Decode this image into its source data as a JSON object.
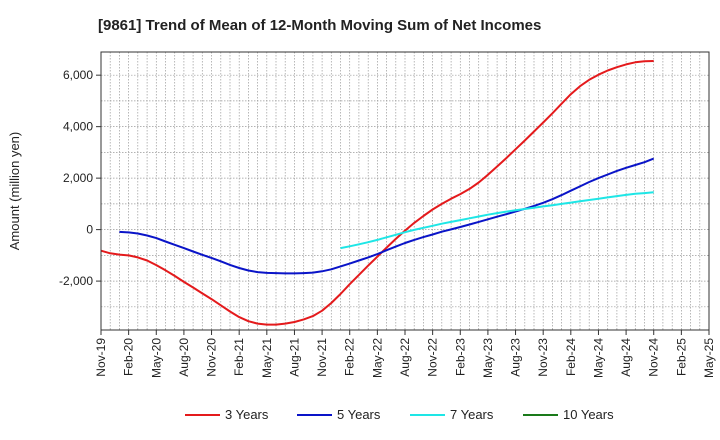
{
  "chart_data": {
    "type": "line",
    "title": "[9861]  Trend of Mean of 12-Month Moving Sum of Net Incomes",
    "xlabel": "",
    "ylabel": "Amount (million yen)",
    "ylim": [
      -3900,
      6900
    ],
    "yticks": [
      -2000,
      0,
      2000,
      4000,
      6000
    ],
    "ytick_labels": [
      "-2,000",
      "0",
      "2,000",
      "4,000",
      "6,000"
    ],
    "x_range": [
      "2019-11",
      "2025-05"
    ],
    "xticks": [
      "Nov-19",
      "Feb-20",
      "May-20",
      "Aug-20",
      "Nov-20",
      "Feb-21",
      "May-21",
      "Aug-21",
      "Nov-21",
      "Feb-22",
      "May-22",
      "Aug-22",
      "Nov-22",
      "Feb-23",
      "May-23",
      "Aug-23",
      "Nov-23",
      "Feb-24",
      "May-24",
      "Aug-24",
      "Nov-24",
      "Feb-25",
      "May-25"
    ],
    "grid": true,
    "legend_position": "bottom",
    "series": [
      {
        "name": "3 Years",
        "color": "#e41a1c",
        "points": [
          [
            "2019-11",
            -820
          ],
          [
            "2019-12",
            -920
          ],
          [
            "2020-01",
            -970
          ],
          [
            "2020-02",
            -1000
          ],
          [
            "2020-03",
            -1080
          ],
          [
            "2020-04",
            -1200
          ],
          [
            "2020-05",
            -1380
          ],
          [
            "2020-06",
            -1580
          ],
          [
            "2020-07",
            -1800
          ],
          [
            "2020-08",
            -2030
          ],
          [
            "2020-09",
            -2250
          ],
          [
            "2020-10",
            -2480
          ],
          [
            "2020-11",
            -2700
          ],
          [
            "2020-12",
            -2940
          ],
          [
            "2021-01",
            -3180
          ],
          [
            "2021-02",
            -3400
          ],
          [
            "2021-03",
            -3560
          ],
          [
            "2021-04",
            -3650
          ],
          [
            "2021-05",
            -3690
          ],
          [
            "2021-06",
            -3690
          ],
          [
            "2021-07",
            -3650
          ],
          [
            "2021-08",
            -3590
          ],
          [
            "2021-09",
            -3490
          ],
          [
            "2021-10",
            -3360
          ],
          [
            "2021-11",
            -3150
          ],
          [
            "2021-12",
            -2850
          ],
          [
            "2022-01",
            -2500
          ],
          [
            "2022-02",
            -2120
          ],
          [
            "2022-03",
            -1760
          ],
          [
            "2022-04",
            -1400
          ],
          [
            "2022-05",
            -1050
          ],
          [
            "2022-06",
            -700
          ],
          [
            "2022-07",
            -360
          ],
          [
            "2022-08",
            -40
          ],
          [
            "2022-09",
            260
          ],
          [
            "2022-10",
            530
          ],
          [
            "2022-11",
            780
          ],
          [
            "2022-12",
            1000
          ],
          [
            "2023-01",
            1200
          ],
          [
            "2023-02",
            1380
          ],
          [
            "2023-03",
            1580
          ],
          [
            "2023-04",
            1830
          ],
          [
            "2023-05",
            2130
          ],
          [
            "2023-06",
            2450
          ],
          [
            "2023-07",
            2780
          ],
          [
            "2023-08",
            3120
          ],
          [
            "2023-09",
            3460
          ],
          [
            "2023-10",
            3810
          ],
          [
            "2023-11",
            4160
          ],
          [
            "2023-12",
            4520
          ],
          [
            "2024-01",
            4890
          ],
          [
            "2024-02",
            5260
          ],
          [
            "2024-03",
            5570
          ],
          [
            "2024-04",
            5820
          ],
          [
            "2024-05",
            6020
          ],
          [
            "2024-06",
            6180
          ],
          [
            "2024-07",
            6310
          ],
          [
            "2024-08",
            6420
          ],
          [
            "2024-09",
            6500
          ],
          [
            "2024-10",
            6540
          ],
          [
            "2024-11",
            6550
          ]
        ]
      },
      {
        "name": "5 Years",
        "color": "#0a14c8",
        "points": [
          [
            "2020-01",
            -90
          ],
          [
            "2020-02",
            -110
          ],
          [
            "2020-03",
            -150
          ],
          [
            "2020-04",
            -230
          ],
          [
            "2020-05",
            -330
          ],
          [
            "2020-06",
            -460
          ],
          [
            "2020-07",
            -590
          ],
          [
            "2020-08",
            -720
          ],
          [
            "2020-09",
            -850
          ],
          [
            "2020-10",
            -980
          ],
          [
            "2020-11",
            -1100
          ],
          [
            "2020-12",
            -1230
          ],
          [
            "2021-01",
            -1370
          ],
          [
            "2021-02",
            -1490
          ],
          [
            "2021-03",
            -1590
          ],
          [
            "2021-04",
            -1650
          ],
          [
            "2021-05",
            -1680
          ],
          [
            "2021-06",
            -1690
          ],
          [
            "2021-07",
            -1700
          ],
          [
            "2021-08",
            -1700
          ],
          [
            "2021-09",
            -1690
          ],
          [
            "2021-10",
            -1670
          ],
          [
            "2021-11",
            -1620
          ],
          [
            "2021-12",
            -1540
          ],
          [
            "2022-01",
            -1430
          ],
          [
            "2022-02",
            -1320
          ],
          [
            "2022-03",
            -1200
          ],
          [
            "2022-04",
            -1080
          ],
          [
            "2022-05",
            -950
          ],
          [
            "2022-06",
            -800
          ],
          [
            "2022-07",
            -660
          ],
          [
            "2022-08",
            -520
          ],
          [
            "2022-09",
            -400
          ],
          [
            "2022-10",
            -290
          ],
          [
            "2022-11",
            -190
          ],
          [
            "2022-12",
            -80
          ],
          [
            "2023-01",
            10
          ],
          [
            "2023-02",
            100
          ],
          [
            "2023-03",
            200
          ],
          [
            "2023-04",
            300
          ],
          [
            "2023-05",
            400
          ],
          [
            "2023-06",
            500
          ],
          [
            "2023-07",
            600
          ],
          [
            "2023-08",
            700
          ],
          [
            "2023-09",
            810
          ],
          [
            "2023-10",
            920
          ],
          [
            "2023-11",
            1040
          ],
          [
            "2023-12",
            1180
          ],
          [
            "2024-01",
            1340
          ],
          [
            "2024-02",
            1510
          ],
          [
            "2024-03",
            1680
          ],
          [
            "2024-04",
            1850
          ],
          [
            "2024-05",
            2000
          ],
          [
            "2024-06",
            2140
          ],
          [
            "2024-07",
            2280
          ],
          [
            "2024-08",
            2400
          ],
          [
            "2024-09",
            2510
          ],
          [
            "2024-10",
            2620
          ],
          [
            "2024-11",
            2760
          ]
        ]
      },
      {
        "name": "7 Years",
        "color": "#1ee6e6",
        "points": [
          [
            "2022-01",
            -720
          ],
          [
            "2022-02",
            -650
          ],
          [
            "2022-03",
            -570
          ],
          [
            "2022-04",
            -490
          ],
          [
            "2022-05",
            -400
          ],
          [
            "2022-06",
            -300
          ],
          [
            "2022-07",
            -200
          ],
          [
            "2022-08",
            -100
          ],
          [
            "2022-09",
            -10
          ],
          [
            "2022-10",
            70
          ],
          [
            "2022-11",
            150
          ],
          [
            "2022-12",
            230
          ],
          [
            "2023-01",
            300
          ],
          [
            "2023-02",
            370
          ],
          [
            "2023-03",
            440
          ],
          [
            "2023-04",
            510
          ],
          [
            "2023-05",
            580
          ],
          [
            "2023-06",
            640
          ],
          [
            "2023-07",
            700
          ],
          [
            "2023-08",
            750
          ],
          [
            "2023-09",
            800
          ],
          [
            "2023-10",
            850
          ],
          [
            "2023-11",
            900
          ],
          [
            "2023-12",
            950
          ],
          [
            "2024-01",
            1000
          ],
          [
            "2024-02",
            1050
          ],
          [
            "2024-03",
            1100
          ],
          [
            "2024-04",
            1150
          ],
          [
            "2024-05",
            1200
          ],
          [
            "2024-06",
            1250
          ],
          [
            "2024-07",
            1300
          ],
          [
            "2024-08",
            1350
          ],
          [
            "2024-09",
            1390
          ],
          [
            "2024-10",
            1420
          ],
          [
            "2024-11",
            1450
          ]
        ]
      },
      {
        "name": "10 Years",
        "color": "#1a7a1a",
        "points": []
      }
    ]
  }
}
